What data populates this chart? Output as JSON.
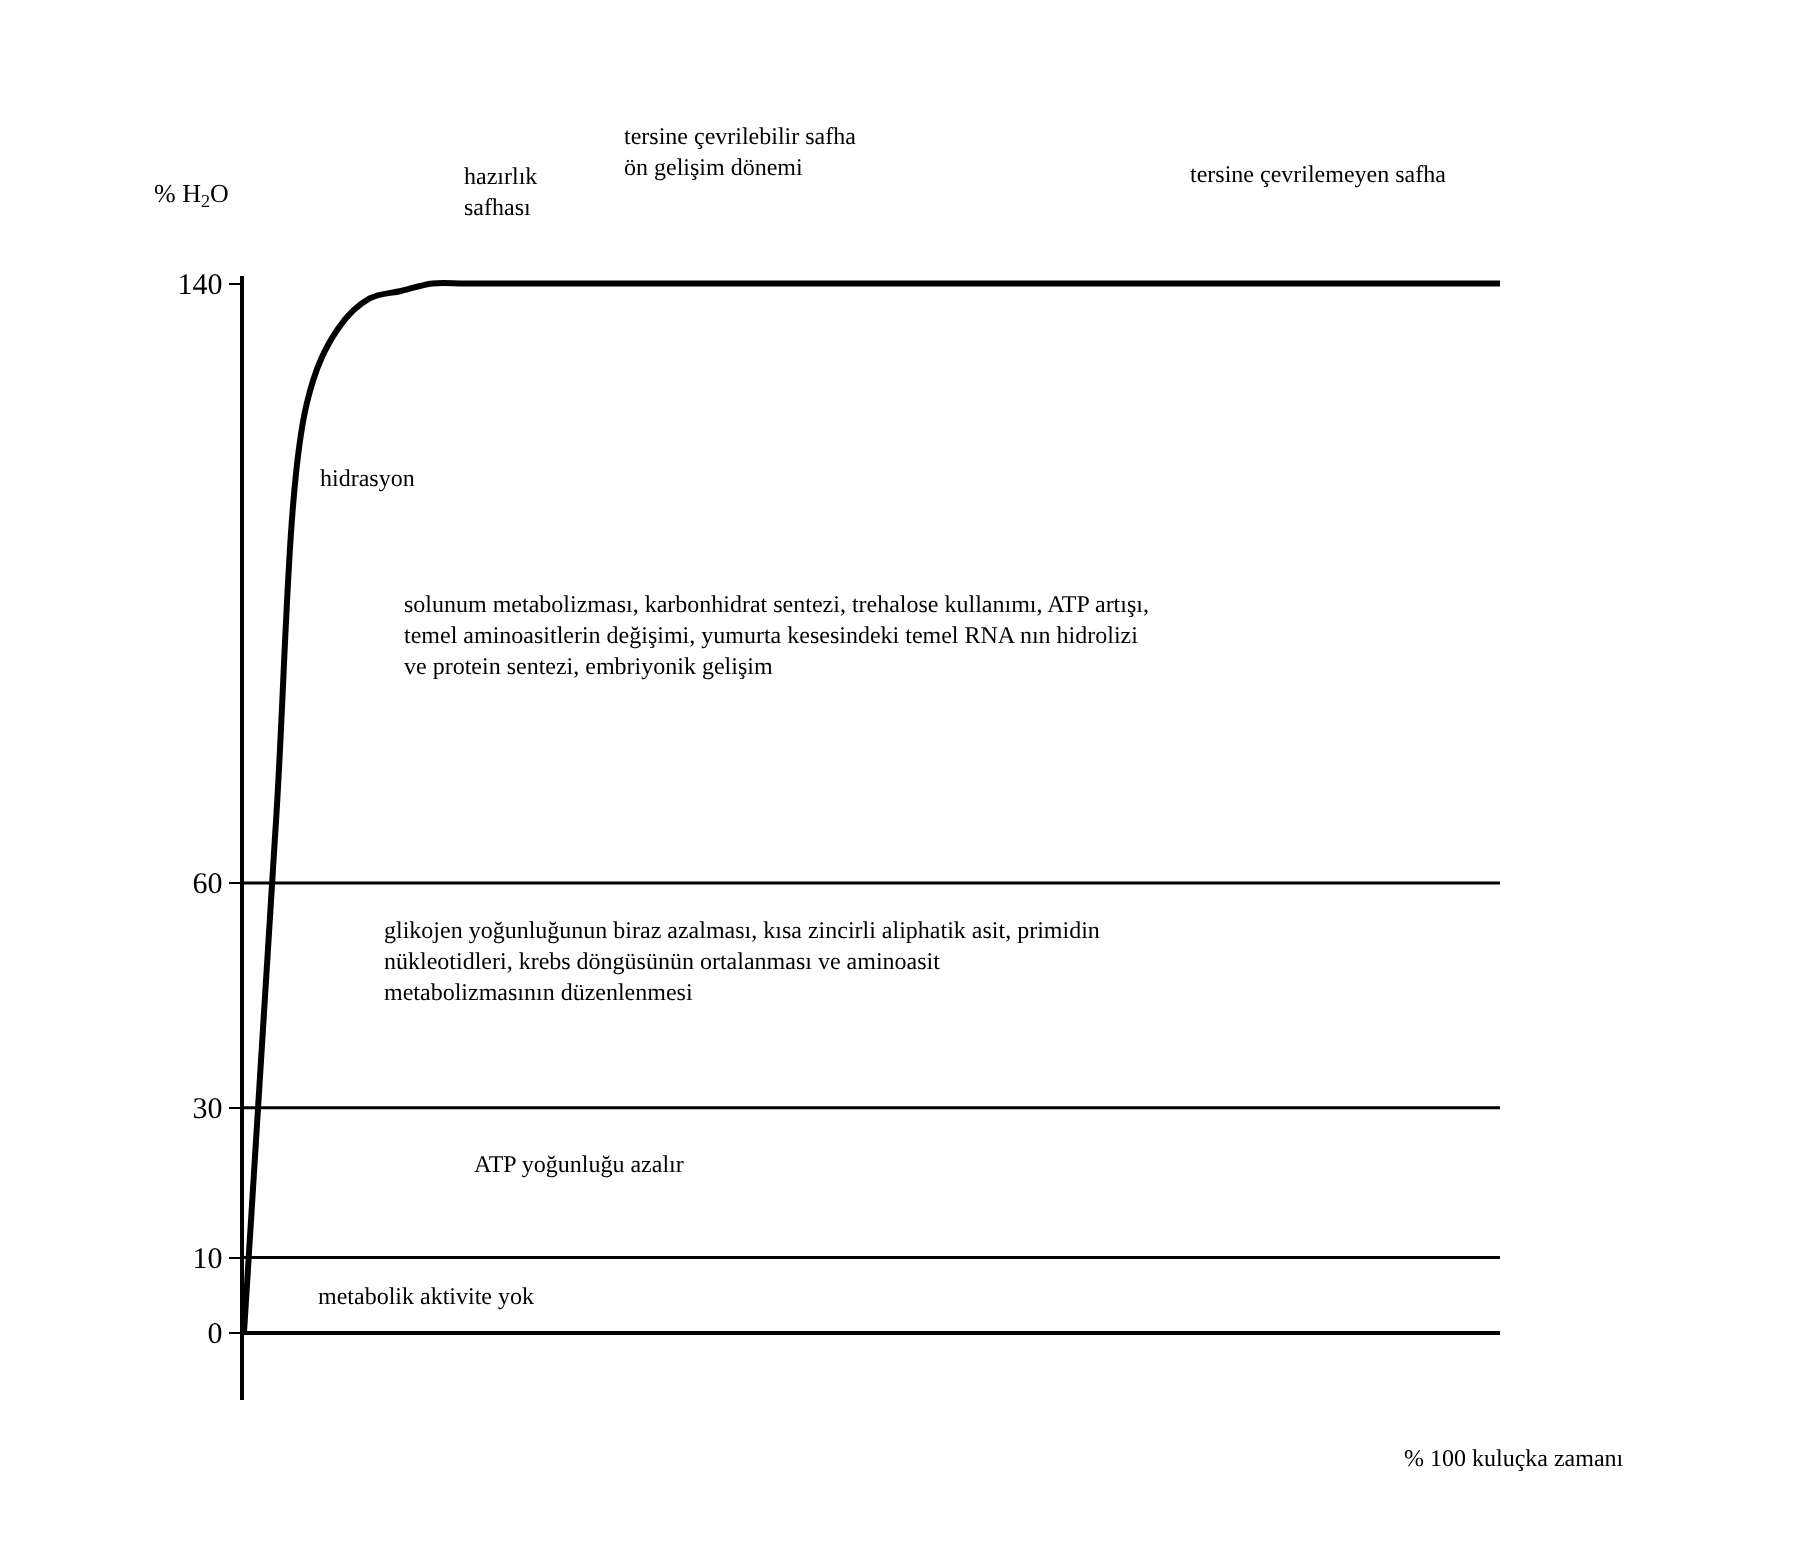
{
  "chart_data": {
    "type": "line",
    "ylabel": "% H$_{2}$O",
    "xlabel": "% 100 kuluçka zamanı",
    "categories": [
      null,
      null,
      null,
      null,
      null,
      null,
      null,
      null,
      null,
      null,
      null,
      null,
      null,
      null,
      null,
      null,
      null,
      null,
      null,
      null,
      null,
      null,
      null,
      null,
      null,
      null,
      null,
      null,
      null,
      null,
      null,
      null,
      null,
      null,
      null,
      null,
      null,
      null,
      null,
      null,
      null
    ],
    "series": [
      {
        "color": "#000000",
        "values": [
          0,
          67,
          124,
          134,
          138,
          139,
          140,
          140,
          140,
          140,
          140,
          140,
          140,
          140,
          140,
          140,
          140,
          140,
          140,
          140,
          140,
          140,
          140,
          140,
          140,
          140,
          140,
          140,
          140,
          140,
          140,
          140,
          140,
          140,
          140,
          140,
          140,
          140,
          140,
          140,
          140
        ]
      }
    ],
    "ylim": [
      -9,
      141
    ],
    "yticks": [
      0,
      10,
      30,
      60,
      140
    ],
    "tick_labels": "y",
    "ref_lines": [
      {
        "axis": "y",
        "value": 60,
        "color": "#000000"
      },
      {
        "axis": "y",
        "value": 30,
        "color": "#000000"
      },
      {
        "axis": "y",
        "value": 10,
        "color": "#000000"
      }
    ],
    "annotations": [
      "hazırlık\nsafhası",
      "tersine çevrilebilir safha\nön gelişim dönemi",
      "tersine çevrilemeyen safha",
      "hidrasyon",
      "solunum metabolizması, karbonhidrat sentezi, trehalose kullanımı, ATP artışı,\ntemel aminoasitlerin değişimi, yumurta kesesindeki temel RNA nın hidrolizi\nve protein sentezi, embriyonik gelişim",
      "glikojen yoğunluğunun biraz azalması, kısa zincirli aliphatik asit, primidin\nnükleotidleri, krebs döngüsünün ortalanması ve aminoasit\nmetabolizmasının düzenlenmesi",
      "ATP yoğunluğu azalır",
      "metabolik aktivite yok"
    ]
  }
}
